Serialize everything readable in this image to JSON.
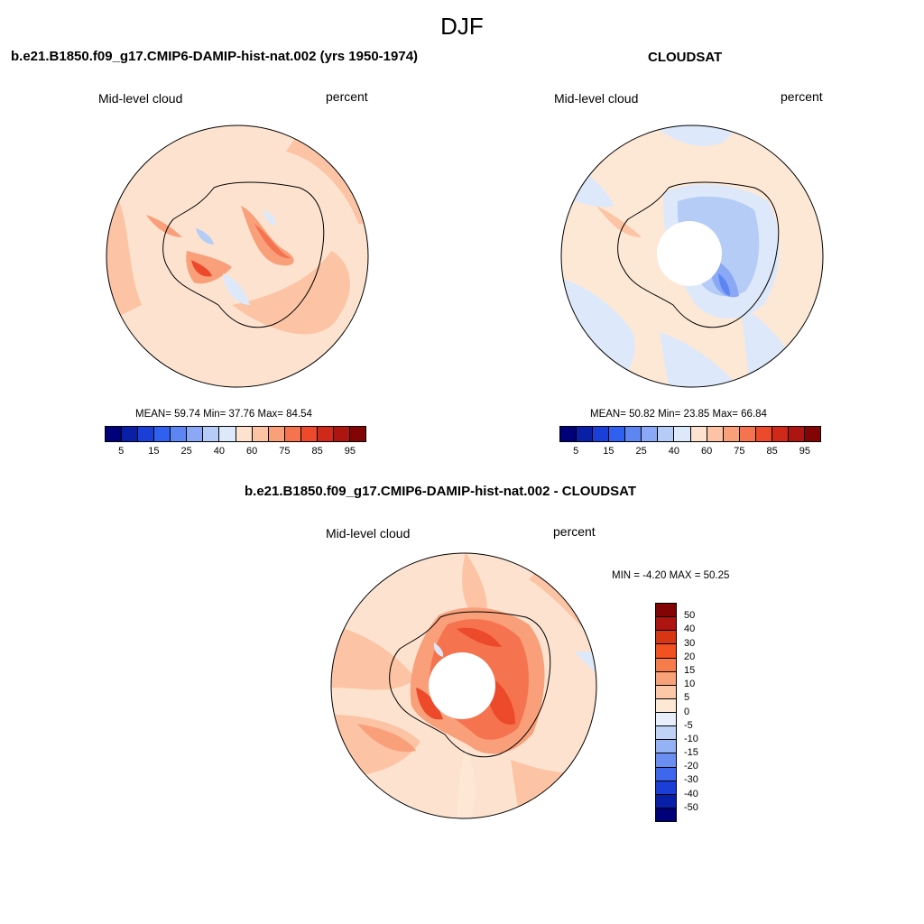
{
  "figure": {
    "season": "DJF"
  },
  "panels": [
    {
      "title": "b.e21.B1850.f09_g17.CMIP6-DAMIP-hist-nat.002 (yrs 1950-1974)",
      "variable": "Mid-level cloud",
      "units": "percent",
      "stats": "MEAN=  59.74  Min=  37.76  Max=  84.54",
      "mean": 59.74,
      "min": 37.76,
      "max": 84.54
    },
    {
      "title": "CLOUDSAT",
      "variable": "Mid-level cloud",
      "units": "percent",
      "stats": "MEAN=  50.82  Min=  23.85  Max=  66.84",
      "mean": 50.82,
      "min": 23.85,
      "max": 66.84
    },
    {
      "title": "b.e21.B1850.f09_g17.CMIP6-DAMIP-hist-nat.002 - CLOUDSAT",
      "variable": "Mid-level cloud",
      "units": "percent",
      "stats": "MIN =  -4.20 MAX =  50.25",
      "min": -4.2,
      "max": 50.25
    }
  ],
  "colorbar_abs": {
    "tick_labels": [
      "5",
      "15",
      "25",
      "40",
      "60",
      "75",
      "85",
      "95"
    ],
    "colors": [
      "#00007a",
      "#0a1fa8",
      "#1a3fd8",
      "#2f60f0",
      "#5d86f2",
      "#8aa8f5",
      "#b5ccf7",
      "#dde9fa",
      "#fde3cf",
      "#fcc4a4",
      "#f99f7a",
      "#f5734e",
      "#ec4a2a",
      "#d0291a",
      "#ae1410",
      "#830404"
    ]
  },
  "colorbar_diff": {
    "tick_labels": [
      "50",
      "40",
      "30",
      "20",
      "15",
      "10",
      "5",
      "0",
      "-5",
      "-10",
      "-15",
      "-20",
      "-30",
      "-40",
      "-50"
    ],
    "colors": [
      "#830404",
      "#ae1410",
      "#d83512",
      "#f2521f",
      "#f77c4c",
      "#f9a27a",
      "#fcc8a8",
      "#fde8d6",
      "#e6effb",
      "#bfd3f7",
      "#94b2f4",
      "#6b8ef2",
      "#3f67ee",
      "#1b3fd6",
      "#0a1fa8",
      "#00007a"
    ]
  },
  "map_fill": {
    "model_bg": "#fde3cf",
    "obs_bg": "#fde8d6",
    "diff_bg": "#fcc4a4"
  }
}
